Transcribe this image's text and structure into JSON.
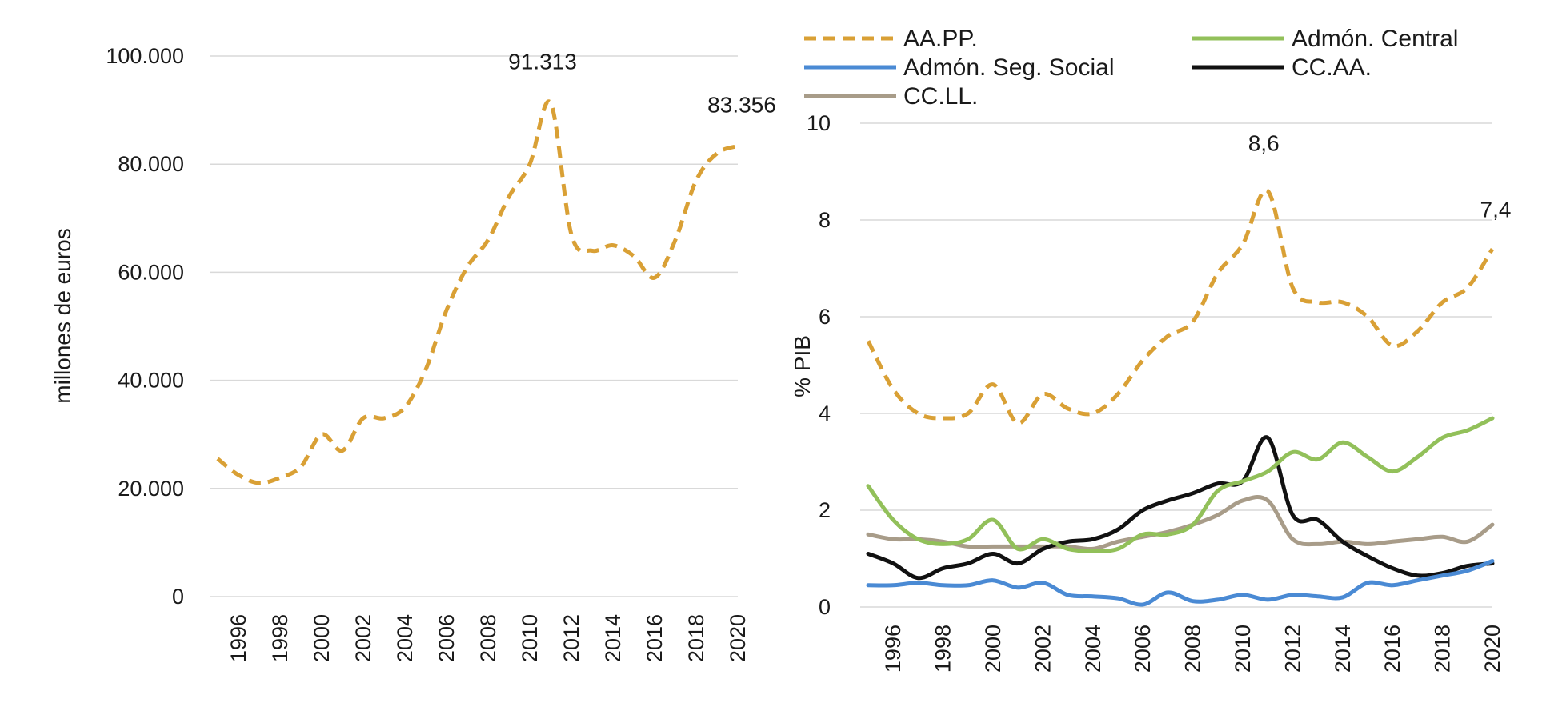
{
  "chart_data": [
    {
      "type": "line",
      "ylabel": "millones de euros",
      "ylim": [
        0,
        100000
      ],
      "yticks": [
        {
          "value": 0,
          "label": "0"
        },
        {
          "value": 20000,
          "label": "20.000"
        },
        {
          "value": 40000,
          "label": "40.000"
        },
        {
          "value": 60000,
          "label": "60.000"
        },
        {
          "value": 80000,
          "label": "80.000"
        },
        {
          "value": 100000,
          "label": "100.000"
        }
      ],
      "xticks": [
        "1996",
        "1998",
        "2000",
        "2002",
        "2004",
        "2006",
        "2008",
        "2010",
        "2012",
        "2014",
        "2016",
        "2018",
        "2020"
      ],
      "x": [
        1995,
        1996,
        1997,
        1998,
        1999,
        2000,
        2001,
        2002,
        2003,
        2004,
        2005,
        2006,
        2007,
        2008,
        2009,
        2010,
        2011,
        2012,
        2013,
        2014,
        2015,
        2016,
        2017,
        2018,
        2019,
        2020
      ],
      "grid": true,
      "series": [
        {
          "key": "aapp",
          "color": "#d9a035",
          "dashed": true,
          "values": [
            25500,
            22500,
            21000,
            22000,
            24000,
            30000,
            27000,
            33000,
            33000,
            35000,
            42000,
            53000,
            61000,
            66000,
            74000,
            80000,
            91313,
            67000,
            64000,
            65000,
            63000,
            59000,
            66000,
            77000,
            82000,
            83356
          ]
        }
      ],
      "annotations": [
        {
          "x": 2011,
          "y": 91313,
          "label": "91.313"
        },
        {
          "x": 2020,
          "y": 83356,
          "label": "83.356"
        }
      ]
    },
    {
      "type": "line",
      "ylabel": "% PIB",
      "ylim": [
        0,
        10
      ],
      "yticks": [
        {
          "value": 0,
          "label": "0"
        },
        {
          "value": 2,
          "label": "2"
        },
        {
          "value": 4,
          "label": "4"
        },
        {
          "value": 6,
          "label": "6"
        },
        {
          "value": 8,
          "label": "8"
        },
        {
          "value": 10,
          "label": "10"
        }
      ],
      "xticks": [
        "1996",
        "1998",
        "2000",
        "2002",
        "2004",
        "2006",
        "2008",
        "2010",
        "2012",
        "2014",
        "2016",
        "2018",
        "2020"
      ],
      "x": [
        1995,
        1996,
        1997,
        1998,
        1999,
        2000,
        2001,
        2002,
        2003,
        2004,
        2005,
        2006,
        2007,
        2008,
        2009,
        2010,
        2011,
        2012,
        2013,
        2014,
        2015,
        2016,
        2017,
        2018,
        2019,
        2020
      ],
      "grid": true,
      "legend_position": "top",
      "series": [
        {
          "key": "aapp",
          "name": "AA.PP.",
          "color": "#d9a035",
          "dashed": true,
          "values": [
            5.5,
            4.5,
            4.0,
            3.9,
            4.0,
            4.6,
            3.8,
            4.4,
            4.1,
            4.0,
            4.4,
            5.1,
            5.6,
            5.9,
            6.9,
            7.5,
            8.6,
            6.6,
            6.3,
            6.3,
            6.0,
            5.4,
            5.7,
            6.3,
            6.6,
            7.4
          ]
        },
        {
          "key": "central",
          "name": "Admón. Central",
          "color": "#92c05a",
          "dashed": false,
          "values": [
            2.5,
            1.8,
            1.4,
            1.3,
            1.4,
            1.8,
            1.2,
            1.4,
            1.2,
            1.15,
            1.2,
            1.5,
            1.5,
            1.7,
            2.4,
            2.6,
            2.8,
            3.2,
            3.05,
            3.4,
            3.1,
            2.8,
            3.1,
            3.5,
            3.65,
            3.9
          ]
        },
        {
          "key": "segsocial",
          "name": "Admón. Seg. Social",
          "color": "#4a8ad4",
          "dashed": false,
          "values": [
            0.45,
            0.45,
            0.5,
            0.45,
            0.45,
            0.55,
            0.4,
            0.5,
            0.25,
            0.22,
            0.18,
            0.05,
            0.3,
            0.12,
            0.15,
            0.25,
            0.15,
            0.25,
            0.22,
            0.2,
            0.5,
            0.45,
            0.55,
            0.65,
            0.75,
            0.95
          ]
        },
        {
          "key": "ccaa",
          "name": "CC.AA.",
          "color": "#111111",
          "dashed": false,
          "values": [
            1.1,
            0.9,
            0.6,
            0.8,
            0.9,
            1.1,
            0.9,
            1.2,
            1.35,
            1.4,
            1.6,
            2.0,
            2.2,
            2.35,
            2.55,
            2.6,
            3.5,
            1.9,
            1.8,
            1.35,
            1.05,
            0.8,
            0.65,
            0.7,
            0.85,
            0.9
          ]
        },
        {
          "key": "ccll",
          "name": "CC.LL.",
          "color": "#a89c89",
          "dashed": false,
          "values": [
            1.5,
            1.4,
            1.4,
            1.35,
            1.25,
            1.25,
            1.25,
            1.25,
            1.25,
            1.2,
            1.35,
            1.45,
            1.55,
            1.7,
            1.9,
            2.2,
            2.2,
            1.4,
            1.3,
            1.35,
            1.3,
            1.35,
            1.4,
            1.45,
            1.35,
            1.7
          ]
        }
      ],
      "annotations": [
        {
          "x": 2011,
          "y": 8.6,
          "label": "8,6"
        },
        {
          "x": 2020,
          "y": 7.4,
          "label": "7,4"
        }
      ]
    }
  ]
}
